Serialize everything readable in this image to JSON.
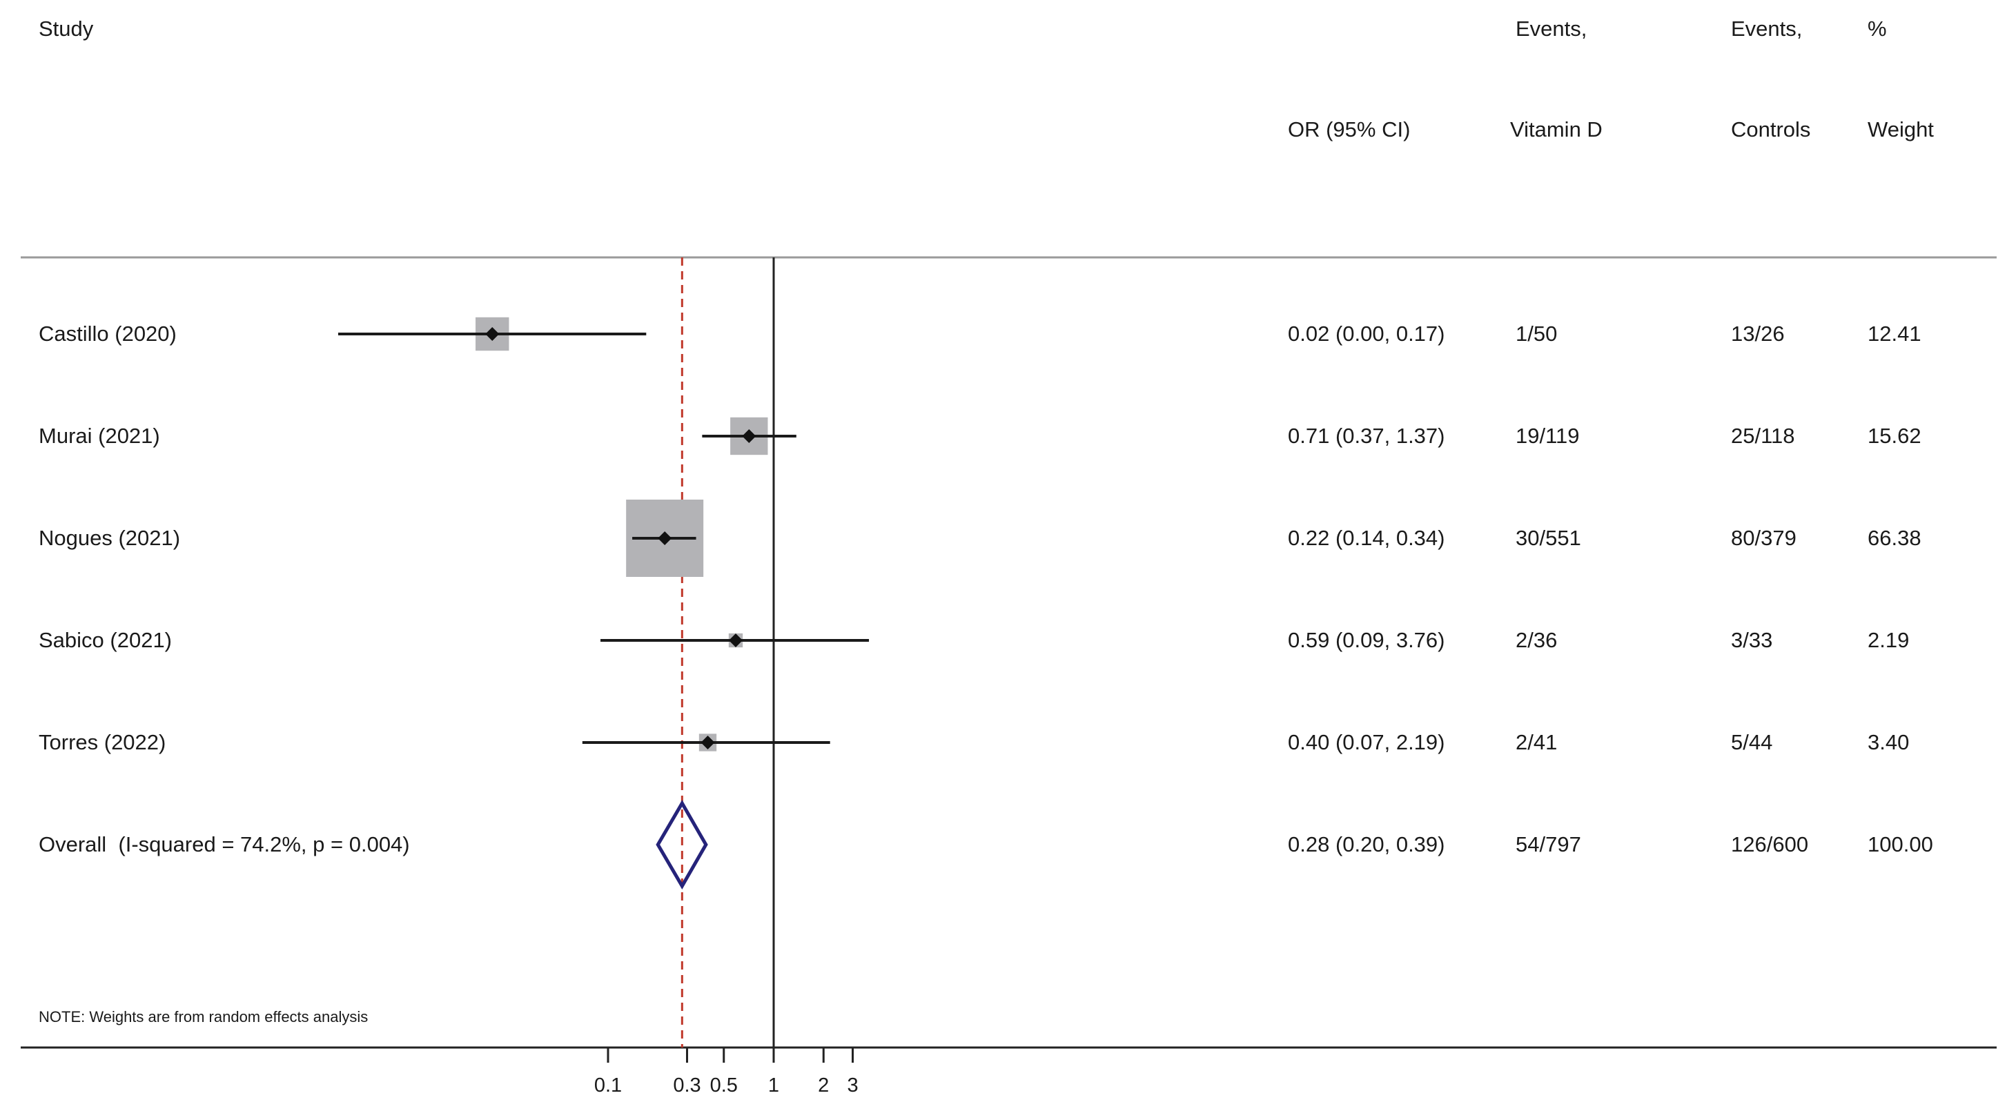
{
  "header": {
    "study": "Study",
    "or_ci": "OR (95% CI)",
    "events_vit_line1": "Events,",
    "events_vit_line2": "Vitamin D",
    "events_ctrl_line1": "Events,",
    "events_ctrl_line2": "Controls",
    "weight_line1": "%",
    "weight_line2": "Weight"
  },
  "rows": [
    {
      "study": "Castillo (2020)",
      "ci_text": "0.02 (0.00, 0.17)",
      "events_vit": "1/50",
      "events_ctrl": "13/26",
      "weight": "12.41"
    },
    {
      "study": "Murai (2021)",
      "ci_text": "0.71 (0.37, 1.37)",
      "events_vit": "19/119",
      "events_ctrl": "25/118",
      "weight": "15.62"
    },
    {
      "study": "Nogues (2021)",
      "ci_text": "0.22 (0.14, 0.34)",
      "events_vit": "30/551",
      "events_ctrl": "80/379",
      "weight": "66.38"
    },
    {
      "study": "Sabico (2021)",
      "ci_text": "0.59 (0.09, 3.76)",
      "events_vit": "2/36",
      "events_ctrl": "3/33",
      "weight": "2.19"
    },
    {
      "study": "Torres (2022)",
      "ci_text": "0.40 (0.07, 2.19)",
      "events_vit": "2/41",
      "events_ctrl": "5/44",
      "weight": "3.40"
    }
  ],
  "overall": {
    "study": "Overall  (I-squared = 74.2%, p = 0.004)",
    "ci_text": "0.28 (0.20, 0.39)",
    "events_vit": "54/797",
    "events_ctrl": "126/600",
    "weight": "100.00"
  },
  "note": "NOTE: Weights are from random effects analysis",
  "chart_data": {
    "type": "forest",
    "scale": "log",
    "null_line": 1,
    "xticks": [
      0.1,
      0.3,
      0.5,
      1,
      2,
      3
    ],
    "xtick_labels": [
      "0.1",
      "0.3",
      "0.5",
      "1",
      "2",
      "3"
    ],
    "studies": [
      {
        "name": "Castillo (2020)",
        "or": 0.02,
        "lo": 0.0,
        "hi": 0.17,
        "weight": 12.41
      },
      {
        "name": "Murai (2021)",
        "or": 0.71,
        "lo": 0.37,
        "hi": 1.37,
        "weight": 15.62
      },
      {
        "name": "Nogues (2021)",
        "or": 0.22,
        "lo": 0.14,
        "hi": 0.34,
        "weight": 66.38
      },
      {
        "name": "Sabico (2021)",
        "or": 0.59,
        "lo": 0.09,
        "hi": 3.76,
        "weight": 2.19
      },
      {
        "name": "Torres (2022)",
        "or": 0.4,
        "lo": 0.07,
        "hi": 2.19,
        "weight": 3.4
      }
    ],
    "overall": {
      "or": 0.28,
      "lo": 0.2,
      "hi": 0.39
    },
    "colors": {
      "ci_line": "#1a1a1a",
      "weight_box": "#b3b3b6",
      "point": "#111111",
      "diamond": "#25237a",
      "overall_line": "#c0392b",
      "axis": "#222222"
    }
  }
}
